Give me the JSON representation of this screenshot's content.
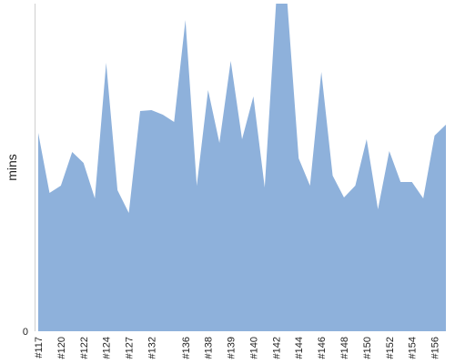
{
  "chart_data": {
    "type": "area",
    "ylabel": "mins",
    "y_tick_labels": [
      "0"
    ],
    "ylim": [
      0,
      360
    ],
    "grid": false,
    "legend": "none",
    "color": "#8eb1db",
    "points": [
      {
        "x": "#117",
        "y": 218
      },
      {
        "x": "",
        "y": 152
      },
      {
        "x": "#120",
        "y": 160
      },
      {
        "x": "",
        "y": 197
      },
      {
        "x": "#122",
        "y": 185
      },
      {
        "x": "",
        "y": 146
      },
      {
        "x": "#124",
        "y": 295
      },
      {
        "x": "",
        "y": 155
      },
      {
        "x": "#127",
        "y": 130
      },
      {
        "x": "",
        "y": 242
      },
      {
        "x": "#132",
        "y": 243
      },
      {
        "x": "",
        "y": 238
      },
      {
        "x": "",
        "y": 230
      },
      {
        "x": "#136",
        "y": 342
      },
      {
        "x": "",
        "y": 160
      },
      {
        "x": "#138",
        "y": 265
      },
      {
        "x": "",
        "y": 207
      },
      {
        "x": "#139",
        "y": 297
      },
      {
        "x": "",
        "y": 211
      },
      {
        "x": "#140",
        "y": 258
      },
      {
        "x": "",
        "y": 158
      },
      {
        "x": "#142",
        "y": 360
      },
      {
        "x": "",
        "y": 360
      },
      {
        "x": "#144",
        "y": 190
      },
      {
        "x": "",
        "y": 160
      },
      {
        "x": "#146",
        "y": 285
      },
      {
        "x": "",
        "y": 171
      },
      {
        "x": "#148",
        "y": 147
      },
      {
        "x": "",
        "y": 160
      },
      {
        "x": "#150",
        "y": 211
      },
      {
        "x": "",
        "y": 134
      },
      {
        "x": "#152",
        "y": 198
      },
      {
        "x": "",
        "y": 164
      },
      {
        "x": "#154",
        "y": 164
      },
      {
        "x": "",
        "y": 146
      },
      {
        "x": "#156",
        "y": 215
      },
      {
        "x": "",
        "y": 227
      }
    ]
  }
}
